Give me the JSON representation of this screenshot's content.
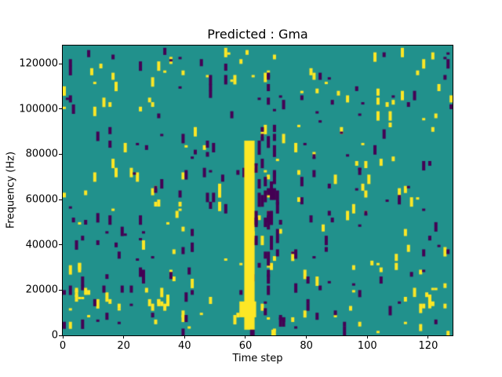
{
  "chart_data": {
    "type": "heatmap",
    "title": "Predicted : Gma",
    "xlabel": "Time step",
    "ylabel": "Frequency (Hz)",
    "x_range": [
      0,
      128
    ],
    "y_range": [
      0,
      128000
    ],
    "x_ticks": [
      0,
      20,
      40,
      60,
      80,
      100,
      120
    ],
    "y_ticks": [
      0,
      20000,
      40000,
      60000,
      80000,
      100000,
      120000
    ],
    "grid": {
      "cols": 128,
      "rows": 128,
      "hz_per_row": 1000
    },
    "legend": "none",
    "colormap": {
      "name": "viridis",
      "mid_background": "#21918c",
      "high": "#fde725",
      "low": "#440154"
    },
    "background_value": "mid",
    "noise": {
      "seed": 20,
      "yellow_marks": 190,
      "purple_marks": 185,
      "mark_rows": [
        1,
        4
      ]
    },
    "features": [
      {
        "label": "solid-yellow-band",
        "value": "high",
        "t": [
          59.6,
          63.0
        ],
        "f": [
          2500,
          86000
        ],
        "density": 1
      },
      {
        "label": "band-bottom-flare",
        "value": "high",
        "t": [
          58.0,
          63.5
        ],
        "f": [
          8000,
          15000
        ],
        "density": 1
      },
      {
        "label": "purple-streaks-after-band",
        "value": "low",
        "t": [
          63.0,
          71.0
        ],
        "f": [
          30000,
          92000
        ],
        "density": 0.25,
        "mark_rows": [
          2,
          6
        ]
      },
      {
        "label": "yellow-cluster-mid-left",
        "value": "high",
        "t": [
          31.0,
          35.0
        ],
        "f": [
          10000,
          22000
        ],
        "density": 0.5,
        "mark_rows": [
          2,
          4
        ]
      },
      {
        "label": "yellow-cluster-far-left",
        "value": "high",
        "t": [
          4.0,
          9.0
        ],
        "f": [
          13000,
          22000
        ],
        "density": 0.4,
        "mark_rows": [
          1,
          3
        ]
      },
      {
        "label": "yellow-cluster-right",
        "value": "high",
        "t": [
          118.0,
          123.0
        ],
        "f": [
          12000,
          20000
        ],
        "density": 0.45,
        "mark_rows": [
          2,
          4
        ]
      },
      {
        "label": "purple-cluster-low-freq",
        "value": "low",
        "t": [
          71.0,
          75.0
        ],
        "f": [
          4000,
          10000
        ],
        "density": 0.5,
        "mark_rows": [
          2,
          4
        ]
      },
      {
        "label": "purple-cells-below-band",
        "value": "low",
        "t": [
          61.5,
          63.0
        ],
        "f": [
          0,
          2500
        ],
        "density": 1
      },
      {
        "label": "yellow-cell-bottom-edge",
        "value": "high",
        "t": [
          68.5,
          70.0
        ],
        "f": [
          0,
          2500
        ],
        "density": 1
      }
    ]
  }
}
